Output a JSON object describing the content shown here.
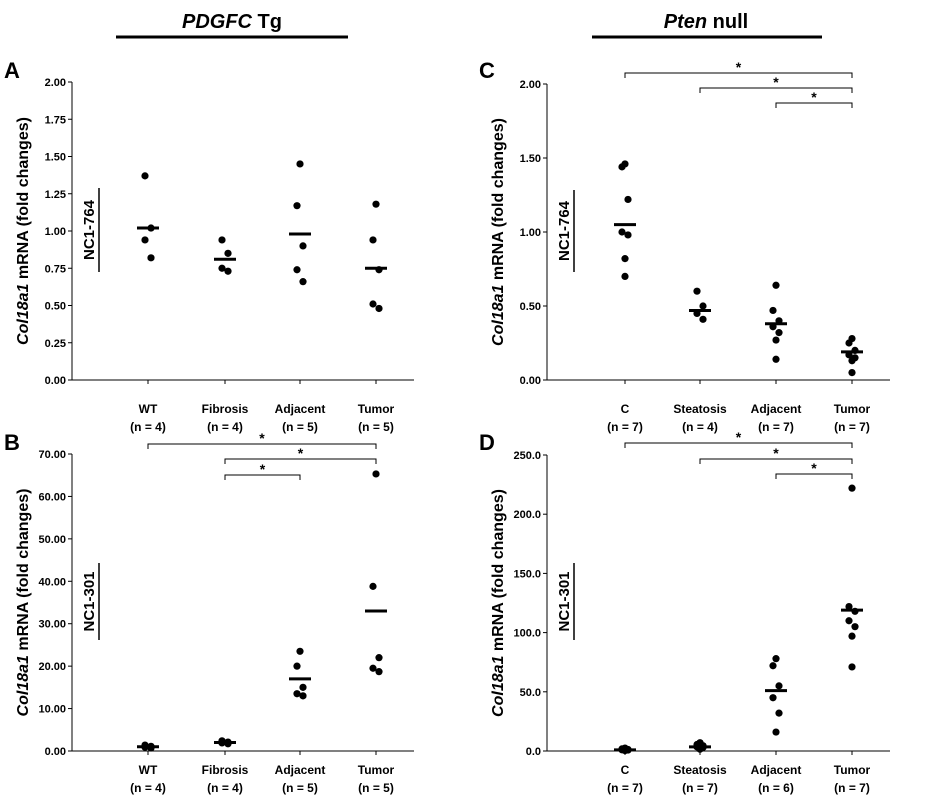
{
  "headers": [
    {
      "italic": "PDGFC",
      "normal": " Tg"
    },
    {
      "italic": "Pten",
      "normal": " null"
    }
  ],
  "chart_data": [
    {
      "type": "scatter",
      "letter": "A",
      "ylabel_italic": "Col18a1",
      "ylabel_rest": " mRNA (fold changes)",
      "side_label": "NC1-764",
      "ylim": [
        0,
        2.0
      ],
      "yticks": [
        "0.00",
        "0.25",
        "0.50",
        "0.75",
        "1.00",
        "1.25",
        "1.50",
        "1.75",
        "2.00"
      ],
      "categories": [
        {
          "name": "WT",
          "n": "(n = 4)",
          "points": [
            1.37,
            1.02,
            0.94,
            0.82
          ],
          "mean": 1.02
        },
        {
          "name": "Fibrosis",
          "n": "(n = 4)",
          "points": [
            0.94,
            0.85,
            0.75,
            0.73
          ],
          "mean": 0.81
        },
        {
          "name": "Adjacent",
          "n": "(n = 5)",
          "points": [
            1.45,
            1.17,
            0.9,
            0.74,
            0.66
          ],
          "mean": 0.98
        },
        {
          "name": "Tumor",
          "n": "(n = 5)",
          "points": [
            1.18,
            0.94,
            0.74,
            0.51,
            0.48
          ],
          "mean": 0.75
        }
      ],
      "significance": []
    },
    {
      "type": "scatter",
      "letter": "B",
      "ylabel_italic": "Col18a1",
      "ylabel_rest": " mRNA (fold changes)",
      "side_label": "NC1-301",
      "ylim": [
        0,
        70
      ],
      "yticks": [
        "0.00",
        "10.00",
        "20.00",
        "30.00",
        "40.00",
        "50.00",
        "60.00",
        "70.00"
      ],
      "categories": [
        {
          "name": "WT",
          "n": "(n = 4)",
          "points": [
            1.4,
            1.1,
            0.9,
            0.7
          ],
          "mean": 1.0
        },
        {
          "name": "Fibrosis",
          "n": "(n = 4)",
          "points": [
            2.4,
            2.1,
            1.9,
            1.7
          ],
          "mean": 2.0
        },
        {
          "name": "Adjacent",
          "n": "(n = 5)",
          "points": [
            23.5,
            20.0,
            15.0,
            13.5,
            13.0
          ],
          "mean": 17.0
        },
        {
          "name": "Tumor",
          "n": "(n = 5)",
          "points": [
            65.3,
            38.8,
            22.0,
            19.5,
            18.7
          ],
          "mean": 33.0
        }
      ],
      "significance": [
        {
          "from": 0,
          "to": 3,
          "label": "*"
        },
        {
          "from": 1,
          "to": 3,
          "label": "*"
        },
        {
          "from": 1,
          "to": 2,
          "label": "*"
        }
      ]
    },
    {
      "type": "scatter",
      "letter": "C",
      "ylabel_italic": "Col18a1",
      "ylabel_rest": " mRNA (fold changes)",
      "side_label": "NC1-764",
      "ylim": [
        0,
        2.0
      ],
      "yticks": [
        "0.00",
        "0.50",
        "1.00",
        "1.50",
        "2.00"
      ],
      "categories": [
        {
          "name": "C",
          "n": "(n = 7)",
          "points": [
            1.46,
            1.44,
            1.22,
            1.0,
            0.98,
            0.82,
            0.7
          ],
          "mean": 1.05
        },
        {
          "name": "Steatosis",
          "n": "(n = 4)",
          "points": [
            0.6,
            0.5,
            0.45,
            0.41
          ],
          "mean": 0.47
        },
        {
          "name": "Adjacent",
          "n": "(n = 7)",
          "points": [
            0.64,
            0.47,
            0.4,
            0.36,
            0.32,
            0.27,
            0.14
          ],
          "mean": 0.38
        },
        {
          "name": "Tumor",
          "n": "(n = 7)",
          "points": [
            0.28,
            0.25,
            0.2,
            0.17,
            0.15,
            0.13,
            0.05
          ],
          "mean": 0.19
        }
      ],
      "significance": [
        {
          "from": 0,
          "to": 3,
          "label": "*"
        },
        {
          "from": 1,
          "to": 3,
          "label": "*"
        },
        {
          "from": 2,
          "to": 3,
          "label": "*"
        }
      ]
    },
    {
      "type": "scatter",
      "letter": "D",
      "ylabel_italic": "Col18a1",
      "ylabel_rest": " mRNA (fold changes)",
      "side_label": "NC1-301",
      "ylim": [
        0,
        250
      ],
      "yticks": [
        "0.0",
        "50.0",
        "100.0",
        "150.0",
        "200.0",
        "250.0"
      ],
      "categories": [
        {
          "name": "C",
          "n": "(n = 7)",
          "points": [
            2.5,
            1.8,
            1.3,
            1.0,
            0.8,
            0.6,
            0.4
          ],
          "mean": 1.0
        },
        {
          "name": "Steatosis",
          "n": "(n = 7)",
          "points": [
            7.0,
            5.5,
            4.5,
            3.5,
            3.0,
            2.0,
            1.5
          ],
          "mean": 3.5
        },
        {
          "name": "Adjacent",
          "n": "(n = 6)",
          "points": [
            78,
            72,
            55,
            45,
            32,
            16
          ],
          "mean": 51
        },
        {
          "name": "Tumor",
          "n": "(n = 7)",
          "points": [
            222,
            122,
            118,
            110,
            105,
            97,
            71
          ],
          "mean": 119
        }
      ],
      "significance": [
        {
          "from": 0,
          "to": 3,
          "label": "*"
        },
        {
          "from": 1,
          "to": 3,
          "label": "*"
        },
        {
          "from": 2,
          "to": 3,
          "label": "*"
        }
      ]
    }
  ]
}
